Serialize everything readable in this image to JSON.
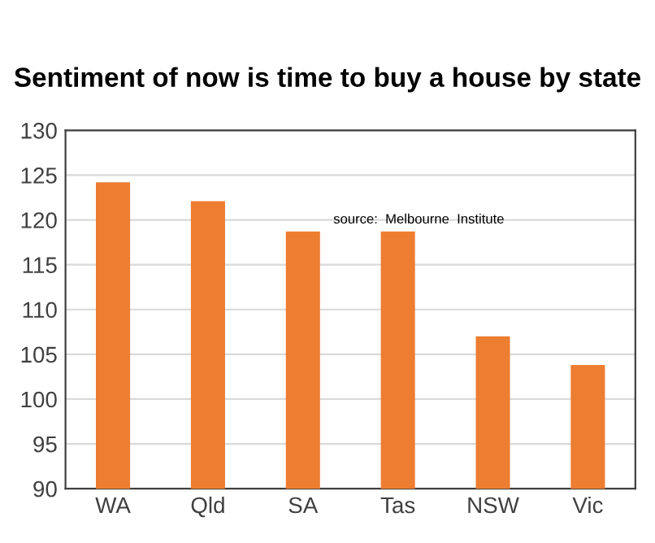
{
  "chart_data": {
    "type": "bar",
    "title": "Sentiment of now is time to buy a house by state",
    "categories": [
      "WA",
      "Qld",
      "SA",
      "Tas",
      "NSW",
      "Vic"
    ],
    "values": [
      124.2,
      122.1,
      118.7,
      118.7,
      107.0,
      103.8
    ],
    "color": "#ed7d31",
    "ylim": [
      90,
      130
    ],
    "yticks": [
      90,
      95,
      100,
      105,
      110,
      115,
      120,
      125,
      130
    ],
    "grid": "y",
    "annotations": [
      "source:  Melbourne  Institute"
    ]
  }
}
